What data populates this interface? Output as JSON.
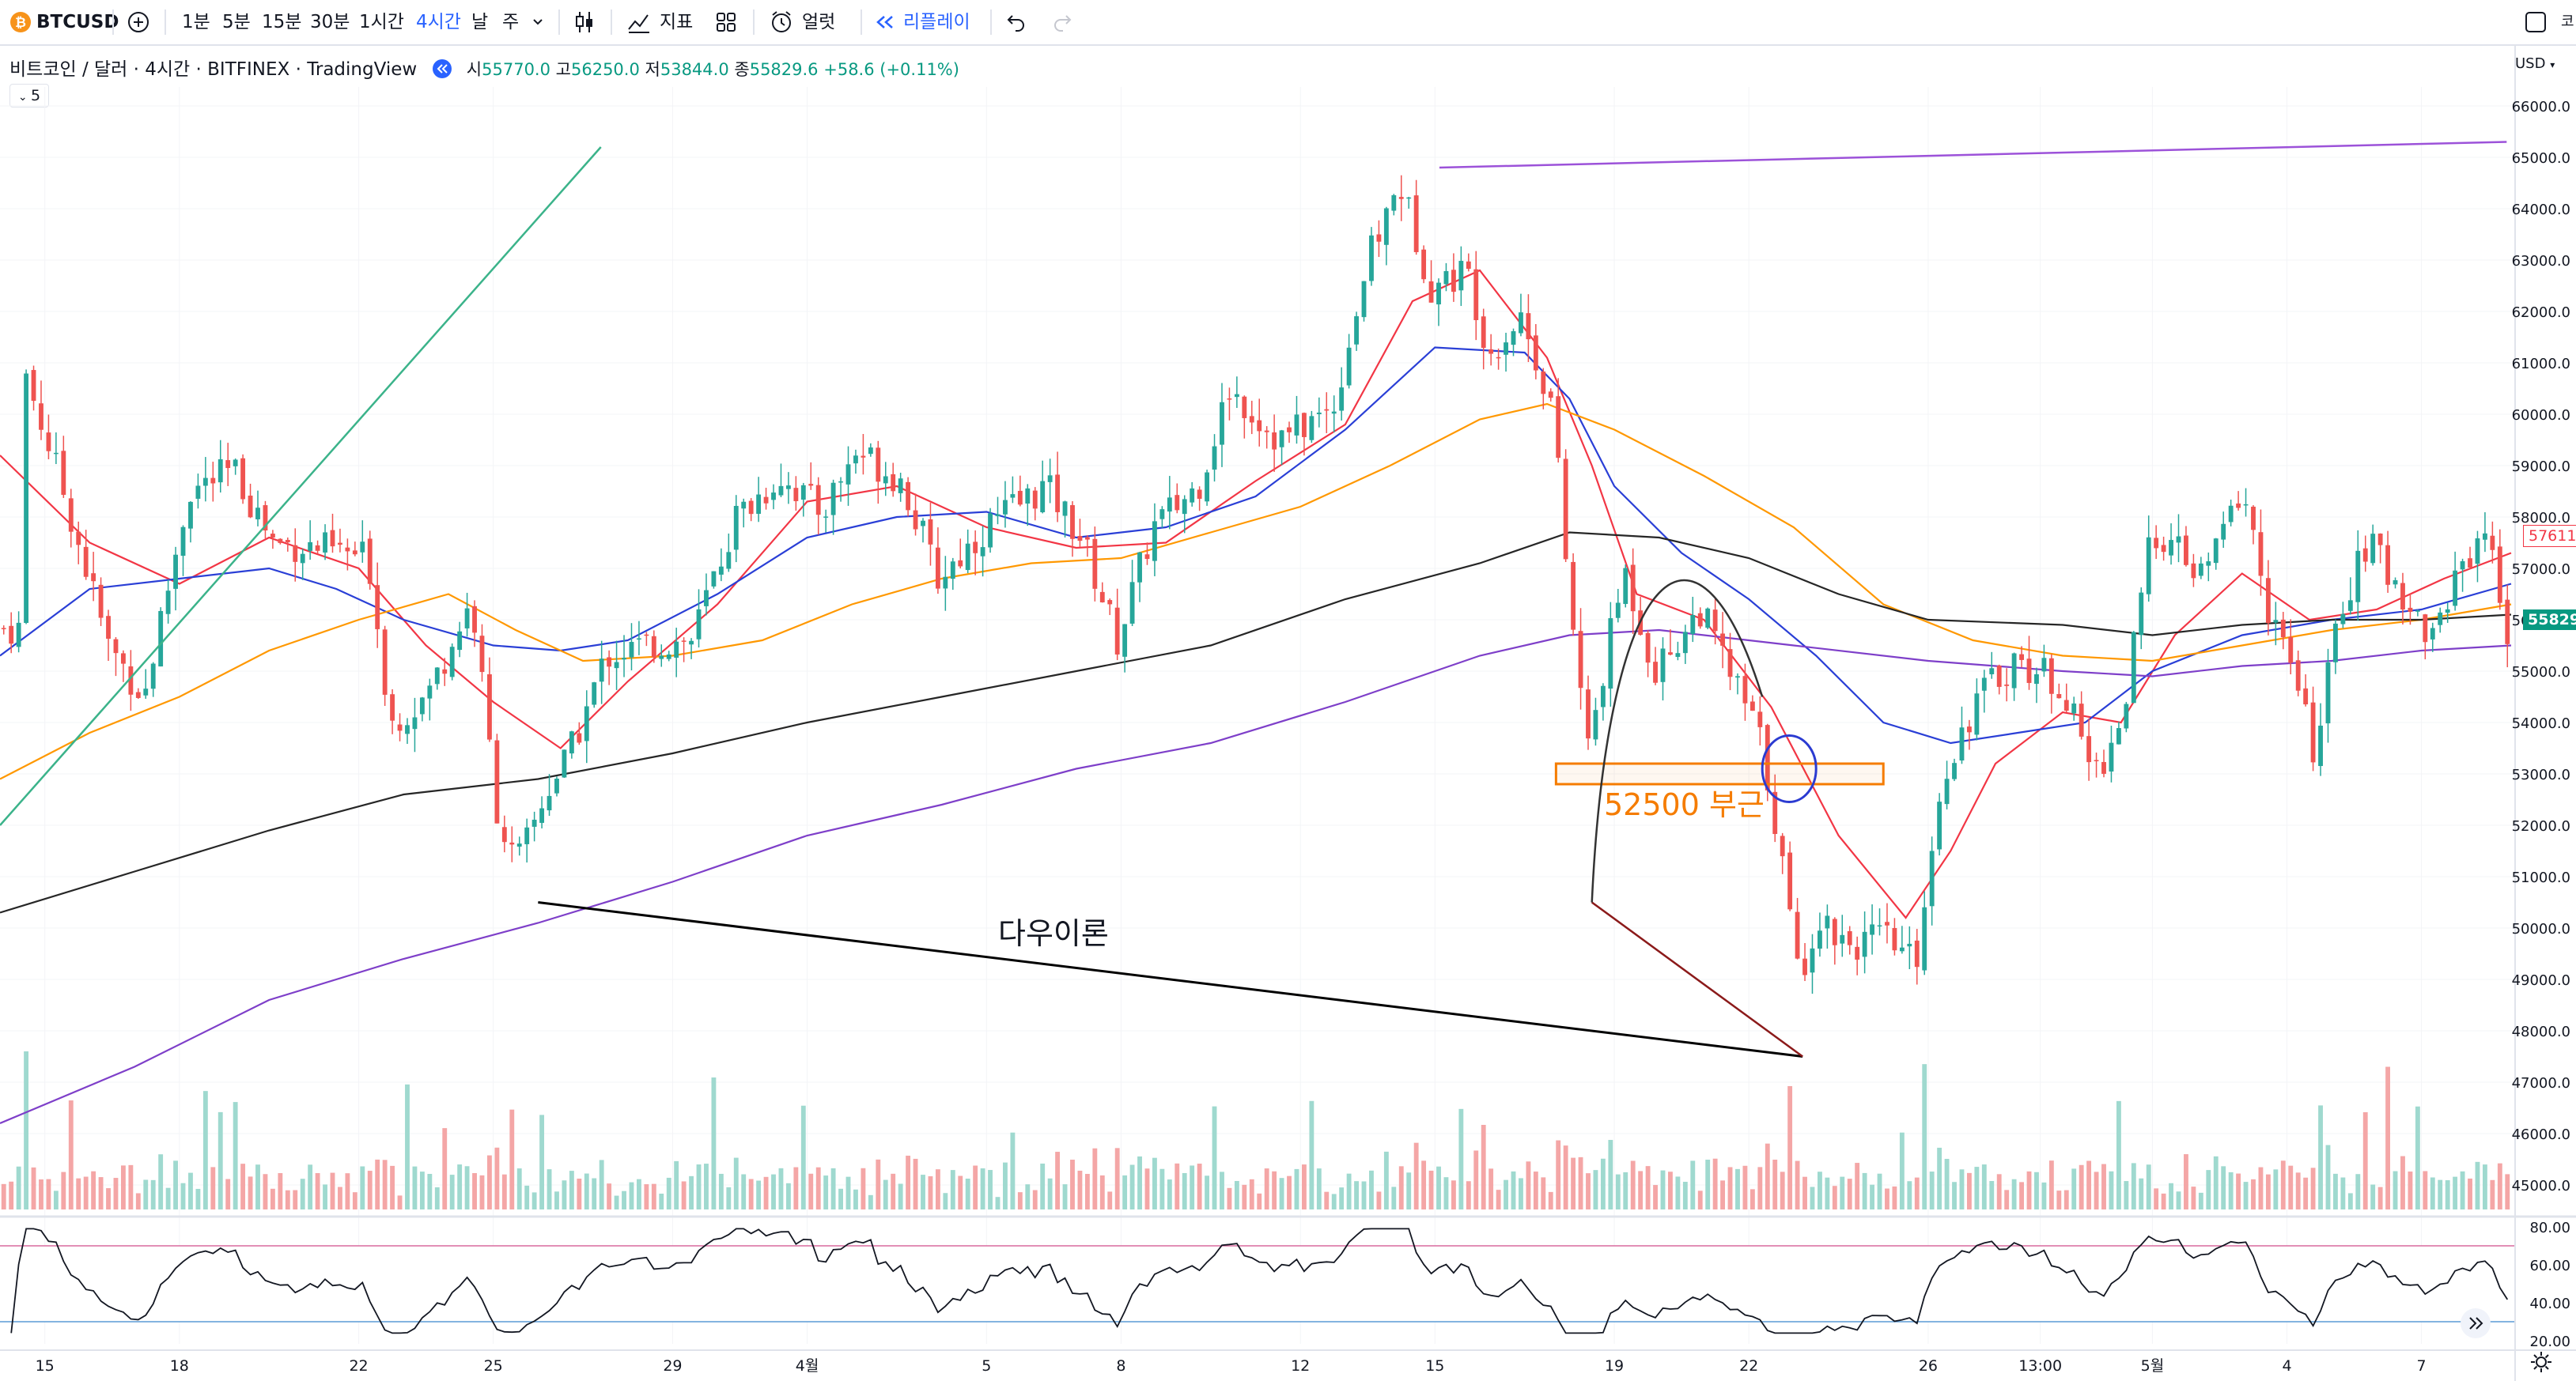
{
  "toolbar": {
    "symbol": "BTCUSD",
    "intervals": [
      "1분",
      "5분",
      "15분",
      "30분",
      "1시간",
      "4시간",
      "날",
      "주"
    ],
    "active_interval": "4시간",
    "indicators_label": "지표",
    "alert_label": "얼럿",
    "replay_label": "리플레이",
    "right_cut_label": "코"
  },
  "legend": {
    "title": "비트코인 / 달러 · 4시간 · BITFINEX · TradingView",
    "open_label": "시",
    "open": "55770.0",
    "high_label": "고",
    "high": "56250.0",
    "low_label": "저",
    "low": "53844.0",
    "close_label": "종",
    "close": "55829.6",
    "change": "+58.6 (+0.11%)",
    "indicator_count": "5"
  },
  "price_axis": {
    "currency": "USD",
    "ticks": [
      "66000.0",
      "65000.0",
      "64000.0",
      "63000.0",
      "62000.0",
      "61000.0",
      "60000.0",
      "59000.0",
      "58000.0",
      "57000.0",
      "56000.0",
      "55000.0",
      "54000.0",
      "53000.0",
      "52000.0",
      "51000.0",
      "50000.0",
      "49000.0",
      "48000.0",
      "47000.0",
      "46000.0",
      "45000.0"
    ],
    "last_price": "55829.6",
    "ma_price": "57611.0"
  },
  "rsi_axis": {
    "ticks": [
      "80.00",
      "60.00",
      "40.00",
      "20.00"
    ]
  },
  "time_axis": {
    "labels": [
      {
        "t": 15,
        "label": "15"
      },
      {
        "t": 18,
        "label": "18"
      },
      {
        "t": 22,
        "label": "22"
      },
      {
        "t": 25,
        "label": "25"
      },
      {
        "t": 29,
        "label": "29"
      },
      {
        "t": 32,
        "label": "4월"
      },
      {
        "t": 36,
        "label": "5"
      },
      {
        "t": 39,
        "label": "8"
      },
      {
        "t": 43,
        "label": "12"
      },
      {
        "t": 46,
        "label": "15"
      },
      {
        "t": 50,
        "label": "19"
      },
      {
        "t": 53,
        "label": "22"
      },
      {
        "t": 57,
        "label": "26"
      },
      {
        "t": 59.5,
        "label": "13:00"
      },
      {
        "t": 62,
        "label": "5월"
      },
      {
        "t": 65,
        "label": "4"
      },
      {
        "t": 68,
        "label": "7"
      }
    ]
  },
  "annotations": {
    "support_label": "52500 부근",
    "dow_label": "다우이론"
  },
  "colors": {
    "up": "#26a69a",
    "down": "#ef5350",
    "ma_fast": "#f23645",
    "ma_mid": "#2a3fd6",
    "ma_slow": "#ff9800",
    "ma_200": "#262626",
    "ma_long": "#7e3fc9",
    "accent": "#2962ff"
  },
  "chart_data": {
    "type": "candlestick",
    "symbol": "BTCUSD",
    "timeframe": "4시간",
    "x_range_days": [
      14,
      70
    ],
    "ylim": [
      44800,
      66500
    ],
    "price_anchors": [
      {
        "t": 14.5,
        "p": 61200
      },
      {
        "t": 15.5,
        "p": 58500
      },
      {
        "t": 16.5,
        "p": 55500
      },
      {
        "t": 17.3,
        "p": 54500
      },
      {
        "t": 18.3,
        "p": 58500
      },
      {
        "t": 19.3,
        "p": 58900
      },
      {
        "t": 20.2,
        "p": 57500
      },
      {
        "t": 21.2,
        "p": 57400
      },
      {
        "t": 22.3,
        "p": 57200
      },
      {
        "t": 22.8,
        "p": 54000
      },
      {
        "t": 23.6,
        "p": 54500
      },
      {
        "t": 24.6,
        "p": 56400
      },
      {
        "t": 25.2,
        "p": 52100
      },
      {
        "t": 25.6,
        "p": 51200
      },
      {
        "t": 26.3,
        "p": 52700
      },
      {
        "t": 26.8,
        "p": 53400
      },
      {
        "t": 27.6,
        "p": 55300
      },
      {
        "t": 28.5,
        "p": 55500
      },
      {
        "t": 29.5,
        "p": 55600
      },
      {
        "t": 30.5,
        "p": 58000
      },
      {
        "t": 31.5,
        "p": 58800
      },
      {
        "t": 32.4,
        "p": 58100
      },
      {
        "t": 33.2,
        "p": 59300
      },
      {
        "t": 34.2,
        "p": 58700
      },
      {
        "t": 35,
        "p": 56800
      },
      {
        "t": 36.2,
        "p": 57900
      },
      {
        "t": 37.4,
        "p": 58600
      },
      {
        "t": 38.2,
        "p": 57600
      },
      {
        "t": 39,
        "p": 55600
      },
      {
        "t": 39.8,
        "p": 57800
      },
      {
        "t": 40.8,
        "p": 58600
      },
      {
        "t": 41.5,
        "p": 60500
      },
      {
        "t": 42.6,
        "p": 59500
      },
      {
        "t": 43.8,
        "p": 60100
      },
      {
        "t": 44.6,
        "p": 63000
      },
      {
        "t": 45.3,
        "p": 64500
      },
      {
        "t": 46,
        "p": 62500
      },
      {
        "t": 46.8,
        "p": 62800
      },
      {
        "t": 47.3,
        "p": 61200
      },
      {
        "t": 48,
        "p": 61900
      },
      {
        "t": 48.7,
        "p": 60200
      },
      {
        "t": 49.1,
        "p": 56200
      },
      {
        "t": 49.5,
        "p": 53500
      },
      {
        "t": 50.3,
        "p": 57000
      },
      {
        "t": 51,
        "p": 55000
      },
      {
        "t": 52,
        "p": 56200
      },
      {
        "t": 52.8,
        "p": 54700
      },
      {
        "t": 53.3,
        "p": 53800
      },
      {
        "t": 53.7,
        "p": 52000
      },
      {
        "t": 54.2,
        "p": 49000
      },
      {
        "t": 54.6,
        "p": 50200
      },
      {
        "t": 55.4,
        "p": 49700
      },
      {
        "t": 56.1,
        "p": 49800
      },
      {
        "t": 56.8,
        "p": 49300
      },
      {
        "t": 57.4,
        "p": 53000
      },
      {
        "t": 58.2,
        "p": 54500
      },
      {
        "t": 59,
        "p": 55200
      },
      {
        "t": 60,
        "p": 54800
      },
      {
        "t": 60.8,
        "p": 53000
      },
      {
        "t": 61.4,
        "p": 54000
      },
      {
        "t": 62.1,
        "p": 57800
      },
      {
        "t": 63.2,
        "p": 56800
      },
      {
        "t": 64.1,
        "p": 58600
      },
      {
        "t": 64.6,
        "p": 56400
      },
      {
        "t": 65.2,
        "p": 55000
      },
      {
        "t": 65.7,
        "p": 53400
      },
      {
        "t": 66.3,
        "p": 56300
      },
      {
        "t": 66.9,
        "p": 57500
      },
      {
        "t": 67.6,
        "p": 56600
      },
      {
        "t": 68.3,
        "p": 55600
      },
      {
        "t": 68.9,
        "p": 57000
      },
      {
        "t": 69.5,
        "p": 57800
      },
      {
        "t": 70,
        "p": 55830
      }
    ],
    "moving_averages": [
      {
        "name": "MA fast",
        "color": "#f23645",
        "points": [
          [
            14,
            59200
          ],
          [
            16,
            57500
          ],
          [
            18,
            56700
          ],
          [
            20,
            57600
          ],
          [
            22,
            57000
          ],
          [
            23.5,
            55500
          ],
          [
            25,
            54400
          ],
          [
            26.5,
            53500
          ],
          [
            28,
            54800
          ],
          [
            30,
            56300
          ],
          [
            32,
            58300
          ],
          [
            34,
            58600
          ],
          [
            36,
            57800
          ],
          [
            38,
            57400
          ],
          [
            40,
            57500
          ],
          [
            42,
            58700
          ],
          [
            44,
            59800
          ],
          [
            45.5,
            62200
          ],
          [
            47,
            62800
          ],
          [
            48.5,
            61100
          ],
          [
            49.5,
            59000
          ],
          [
            50.5,
            56500
          ],
          [
            52,
            56000
          ],
          [
            53.5,
            54300
          ],
          [
            55,
            51800
          ],
          [
            56.5,
            50200
          ],
          [
            57.5,
            51500
          ],
          [
            58.5,
            53200
          ],
          [
            60,
            54200
          ],
          [
            61.3,
            54000
          ],
          [
            62.5,
            55700
          ],
          [
            64,
            56900
          ],
          [
            65.5,
            56000
          ],
          [
            67,
            56200
          ],
          [
            68.5,
            56800
          ],
          [
            70,
            57300
          ]
        ]
      },
      {
        "name": "MA mid",
        "color": "#2a3fd6",
        "points": [
          [
            14,
            55300
          ],
          [
            16,
            56600
          ],
          [
            18,
            56800
          ],
          [
            20,
            57000
          ],
          [
            21.5,
            56600
          ],
          [
            23,
            56000
          ],
          [
            25,
            55500
          ],
          [
            26.5,
            55400
          ],
          [
            28,
            55600
          ],
          [
            30,
            56500
          ],
          [
            32,
            57600
          ],
          [
            34,
            58000
          ],
          [
            36,
            58100
          ],
          [
            38,
            57600
          ],
          [
            40,
            57800
          ],
          [
            42,
            58400
          ],
          [
            44,
            59700
          ],
          [
            46,
            61300
          ],
          [
            48,
            61200
          ],
          [
            49,
            60300
          ],
          [
            50,
            58600
          ],
          [
            51.5,
            57300
          ],
          [
            53,
            56400
          ],
          [
            54.5,
            55300
          ],
          [
            56,
            54000
          ],
          [
            57.5,
            53600
          ],
          [
            59,
            53800
          ],
          [
            60.5,
            54000
          ],
          [
            62,
            55000
          ],
          [
            64,
            55700
          ],
          [
            66,
            56000
          ],
          [
            68,
            56200
          ],
          [
            70,
            56700
          ]
        ]
      },
      {
        "name": "MA slow",
        "color": "#ff9800",
        "points": [
          [
            14,
            52900
          ],
          [
            16,
            53800
          ],
          [
            18,
            54500
          ],
          [
            20,
            55400
          ],
          [
            22,
            56000
          ],
          [
            24,
            56500
          ],
          [
            25.5,
            55800
          ],
          [
            27,
            55200
          ],
          [
            29,
            55300
          ],
          [
            31,
            55600
          ],
          [
            33,
            56300
          ],
          [
            35,
            56800
          ],
          [
            37,
            57100
          ],
          [
            39,
            57200
          ],
          [
            41,
            57700
          ],
          [
            43,
            58200
          ],
          [
            45,
            59000
          ],
          [
            47,
            59900
          ],
          [
            48.5,
            60200
          ],
          [
            50,
            59700
          ],
          [
            52,
            58800
          ],
          [
            54,
            57800
          ],
          [
            56,
            56300
          ],
          [
            58,
            55600
          ],
          [
            60,
            55300
          ],
          [
            62,
            55200
          ],
          [
            64,
            55500
          ],
          [
            66,
            55800
          ],
          [
            68,
            56000
          ],
          [
            70,
            56300
          ]
        ]
      },
      {
        "name": "MA 200",
        "color": "#262626",
        "points": [
          [
            14,
            50300
          ],
          [
            17,
            51100
          ],
          [
            20,
            51900
          ],
          [
            23,
            52600
          ],
          [
            26,
            52900
          ],
          [
            29,
            53400
          ],
          [
            32,
            54000
          ],
          [
            35,
            54500
          ],
          [
            38,
            55000
          ],
          [
            41,
            55500
          ],
          [
            44,
            56400
          ],
          [
            47,
            57100
          ],
          [
            49,
            57700
          ],
          [
            51,
            57600
          ],
          [
            53,
            57200
          ],
          [
            55,
            56500
          ],
          [
            57,
            56000
          ],
          [
            60,
            55900
          ],
          [
            62,
            55700
          ],
          [
            64,
            55900
          ],
          [
            66,
            56000
          ],
          [
            68,
            56000
          ],
          [
            70,
            56100
          ]
        ]
      },
      {
        "name": "MA long",
        "color": "#7e3fc9",
        "points": [
          [
            14,
            46200
          ],
          [
            17,
            47300
          ],
          [
            20,
            48600
          ],
          [
            23,
            49400
          ],
          [
            26,
            50100
          ],
          [
            29,
            50900
          ],
          [
            32,
            51800
          ],
          [
            35,
            52400
          ],
          [
            38,
            53100
          ],
          [
            41,
            53600
          ],
          [
            44,
            54400
          ],
          [
            47,
            55300
          ],
          [
            49,
            55700
          ],
          [
            51,
            55800
          ],
          [
            54,
            55500
          ],
          [
            57,
            55200
          ],
          [
            60,
            55000
          ],
          [
            62,
            54900
          ],
          [
            64,
            55100
          ],
          [
            66,
            55200
          ],
          [
            68,
            55400
          ],
          [
            70,
            55500
          ]
        ]
      }
    ],
    "volume_bars": "histogram below price panel (relative heights, green=up, red=down)",
    "rsi": {
      "range": [
        20,
        80
      ],
      "upper_band": 70,
      "lower_band": 30
    },
    "drawings": [
      {
        "type": "trendline",
        "color": "#3bb38a",
        "from": [
          14,
          52000
        ],
        "to": [
          27.4,
          65200
        ]
      },
      {
        "type": "trendline",
        "color": "#9c52d9",
        "from": [
          46.1,
          64800
        ],
        "to": [
          69.9,
          65300
        ]
      },
      {
        "type": "rectangle",
        "color": "#f57c00",
        "from": [
          48.7,
          53200
        ],
        "to": [
          56.0,
          52800
        ],
        "label": "52500 부근"
      },
      {
        "type": "trendline",
        "color": "#000000",
        "from": [
          26.0,
          50500
        ],
        "to": [
          54.2,
          47500
        ],
        "label": "다우이론"
      },
      {
        "type": "trendline",
        "color": "#8b1a1a",
        "from": [
          49.5,
          50500
        ],
        "to": [
          54.2,
          47500
        ]
      },
      {
        "type": "ellipse",
        "color": "#2b3bd1",
        "center": [
          53.9,
          53100
        ]
      },
      {
        "type": "arc",
        "color": "#333333",
        "from": [
          49.5,
          50500
        ],
        "peak": [
          50.8,
          56700
        ],
        "to": [
          53.3,
          54500
        ]
      }
    ]
  }
}
